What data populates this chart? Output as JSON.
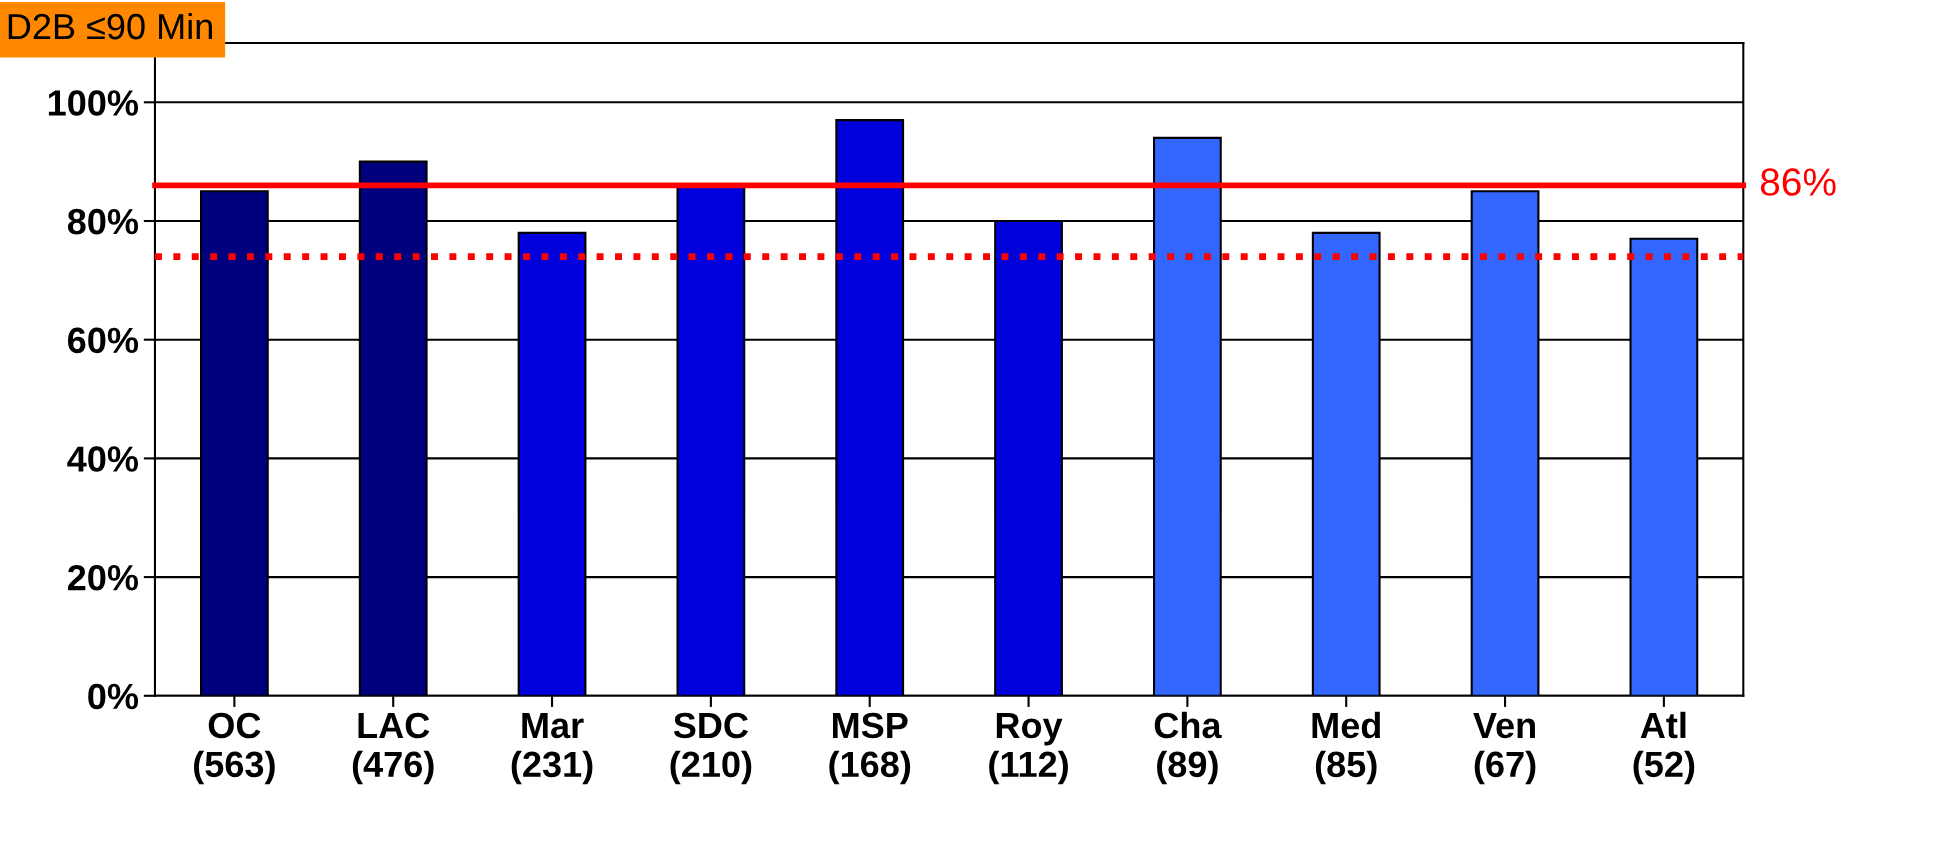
{
  "chart_data": {
    "type": "bar",
    "title": "D2B ≤90 Min",
    "categories": [
      "OC\n(563)",
      "LAC\n(476)",
      "Mar\n(231)",
      "SDC\n(210)",
      "MSP\n(168)",
      "Roy\n(112)",
      "Cha\n(89)",
      "Med\n(85)",
      "Ven\n(67)",
      "Atl\n(52)"
    ],
    "values": [
      85,
      90,
      78,
      86,
      97,
      80,
      94,
      78,
      85,
      77
    ],
    "colors": [
      "#00007f",
      "#00007f",
      "#0000dd",
      "#0000dd",
      "#0000dd",
      "#0000dd",
      "#3366ff",
      "#3366ff",
      "#3366ff",
      "#3366ff"
    ],
    "ylim": [
      0,
      110
    ],
    "yticks": [
      {
        "value": 0,
        "label": "0%"
      },
      {
        "value": 20,
        "label": "20%"
      },
      {
        "value": 40,
        "label": "40%"
      },
      {
        "value": 60,
        "label": "60%"
      },
      {
        "value": 80,
        "label": "80%"
      },
      {
        "value": 100,
        "label": "100%"
      }
    ],
    "grid": "y",
    "ref_lines": [
      {
        "axis": "y",
        "value": 86,
        "label": "86%",
        "color": "#ff0000",
        "line_style": "solid"
      },
      {
        "axis": "y",
        "value": 74,
        "label": null,
        "color": "#ff0000",
        "line_style": "dotted"
      }
    ]
  }
}
